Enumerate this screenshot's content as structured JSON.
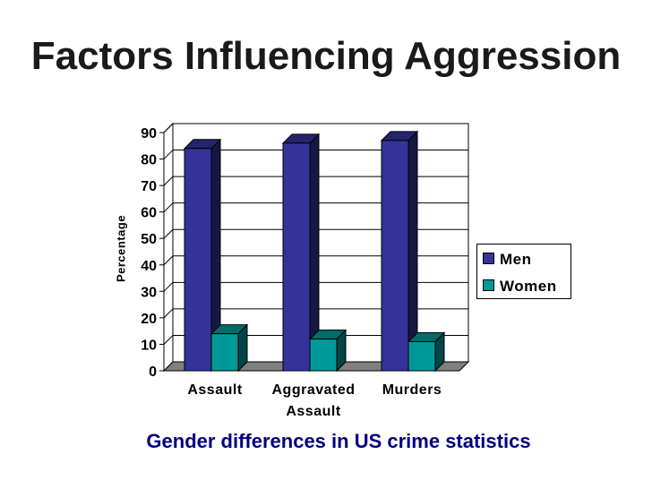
{
  "slide": {
    "title": "Factors Influencing Aggression",
    "caption": "Gender differences in US crime statistics"
  },
  "colors": {
    "men": "#333399",
    "women": "#009999",
    "caption": "#000080"
  },
  "chart_data": {
    "type": "bar",
    "categories": [
      [
        "Assault"
      ],
      [
        "Aggravated",
        "Assault"
      ],
      [
        "Murders"
      ]
    ],
    "series": [
      {
        "name": "Men",
        "values": [
          84,
          86,
          87
        ]
      },
      {
        "name": "Women",
        "values": [
          14,
          12,
          11
        ]
      }
    ],
    "ylabel": "Percentage",
    "ylim": [
      0,
      90
    ],
    "yticks": [
      "0",
      "10",
      "20",
      "30",
      "40",
      "50",
      "60",
      "70",
      "80",
      "90"
    ],
    "grid": true,
    "legend_position": "right",
    "style": "3d-bar"
  }
}
